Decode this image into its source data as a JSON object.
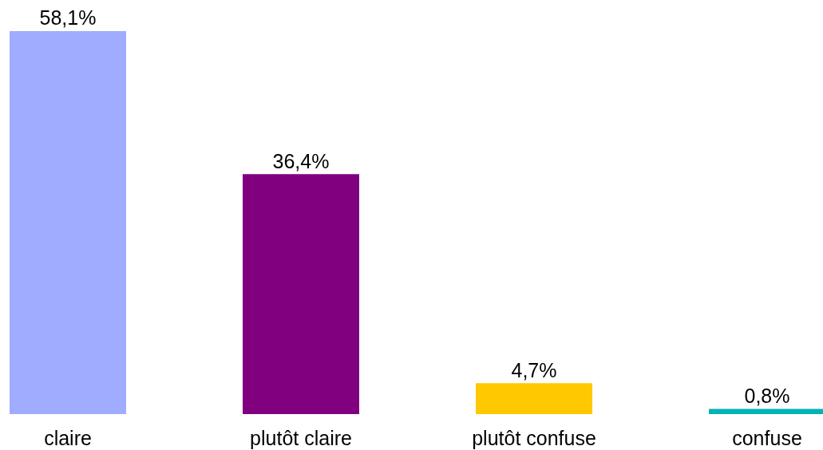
{
  "chart_data": {
    "type": "bar",
    "categories": [
      "claire",
      "plutôt claire",
      "plutôt confuse",
      "confuse"
    ],
    "values": [
      58.1,
      36.4,
      4.7,
      0.8
    ],
    "colors": [
      "#a0acff",
      "#800080",
      "#ffc800",
      "#00b4b4"
    ],
    "value_labels": [
      "58,1%",
      "36,4%",
      "4,7%",
      "0,8%"
    ],
    "tick_labels": "x"
  }
}
